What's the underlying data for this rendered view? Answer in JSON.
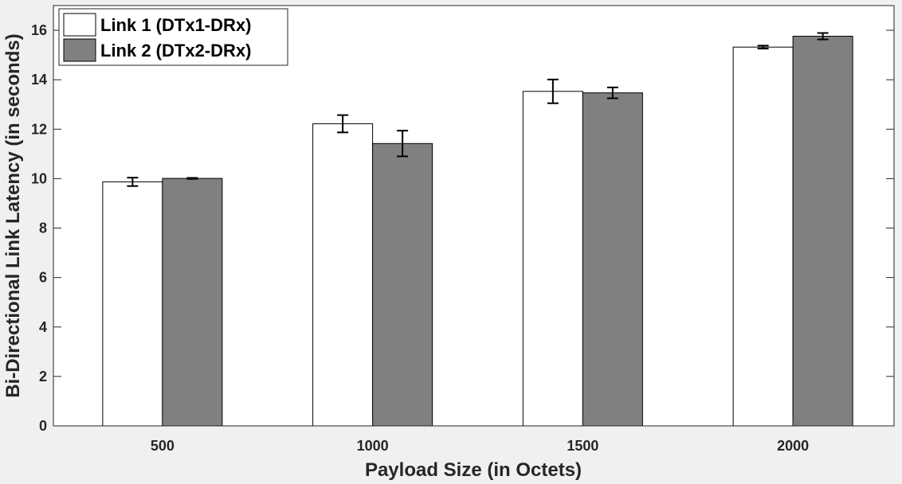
{
  "chart_data": {
    "type": "bar",
    "title": "",
    "xlabel": "Payload Size (in Octets)",
    "ylabel": "Bi-Directional Link Latency (in seconds)",
    "categories": [
      "500",
      "1000",
      "1500",
      "2000"
    ],
    "ylim": [
      0,
      17
    ],
    "yticks": [
      0,
      2,
      4,
      6,
      8,
      10,
      12,
      14,
      16
    ],
    "grid": false,
    "legend_position": "top-left",
    "series": [
      {
        "name": "Link 1 (DTx1-DRx)",
        "color": "#ffffff",
        "values": [
          9.87,
          12.22,
          13.53,
          15.32
        ],
        "error": [
          0.17,
          0.35,
          0.48,
          0.06
        ]
      },
      {
        "name": "Link 2 (DTx2-DRx)",
        "color": "#808080",
        "values": [
          10.01,
          11.42,
          13.47,
          15.76
        ],
        "error": [
          0.02,
          0.52,
          0.22,
          0.13
        ]
      }
    ]
  }
}
